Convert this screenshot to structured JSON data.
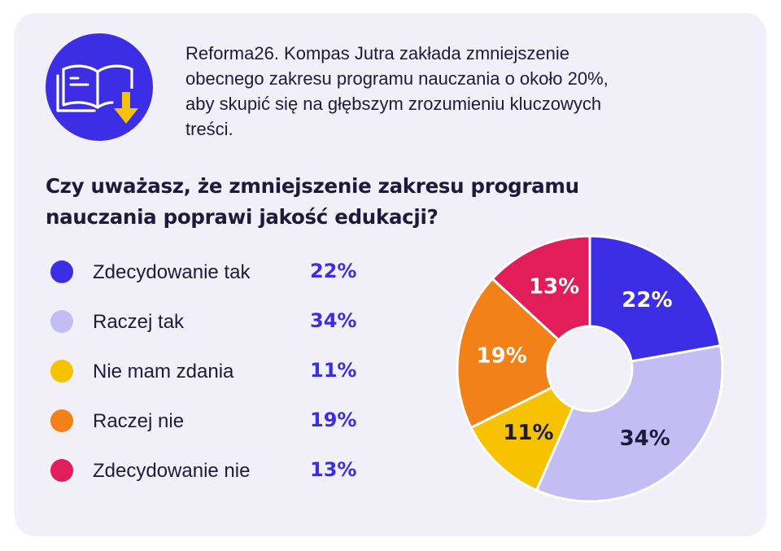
{
  "intro_text": "Reforma26. Kompas Jutra zakłada zmniejszenie obecnego zakresu programu nauczania o około 20%, aby skupić się na głębszym zrozumieniu kluczowych treści.",
  "question": "Czy uważasz, że zmniejszenie zakresu programu nauczania poprawi jakość edukacji?",
  "icon": "book-download-icon",
  "colors": {
    "card_bg": "#f1f0f9",
    "accent": "#3c2ee4",
    "text": "#1c1b3a"
  },
  "chart_data": {
    "type": "pie",
    "donut": true,
    "title": "",
    "categories": [
      "Zdecydowanie tak",
      "Raczej tak",
      "Nie mam zdania",
      "Raczej nie",
      "Zdecydowanie nie"
    ],
    "values": [
      22,
      34,
      11,
      19,
      13
    ],
    "value_labels": [
      "22%",
      "34%",
      "11%",
      "19%",
      "13%"
    ],
    "colors": [
      "#3c2ee4",
      "#c2bdf3",
      "#f7c200",
      "#f28118",
      "#e11d5a"
    ],
    "label_colors": [
      "#ffffff",
      "#1c1b3a",
      "#1c1b3a",
      "#ffffff",
      "#ffffff"
    ],
    "legend_position": "left"
  }
}
